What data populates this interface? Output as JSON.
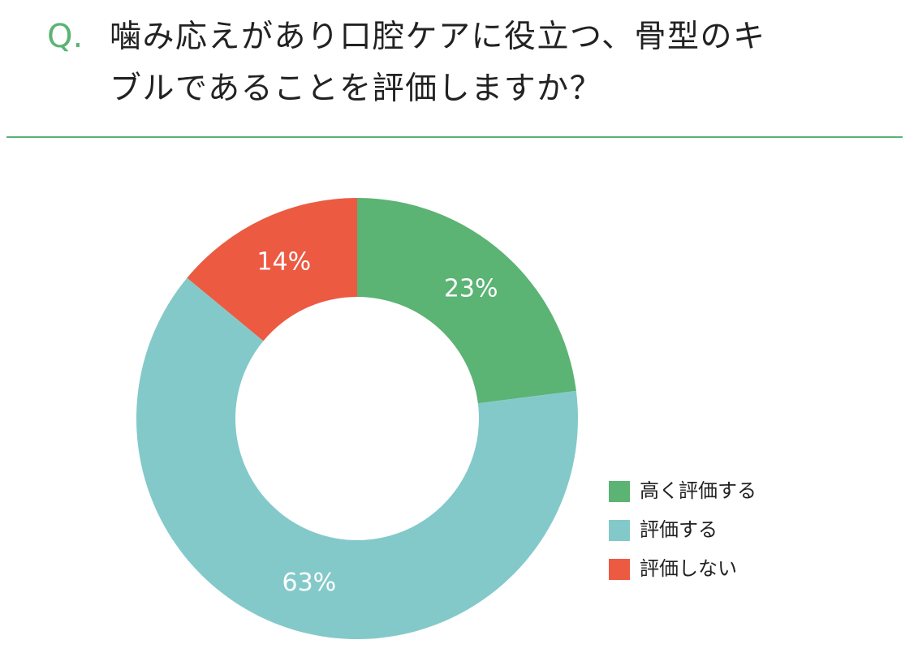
{
  "chart_data": {
    "type": "donut",
    "question_label": "Q.",
    "title_lines": [
      "噛み応えがあり口腔ケアに役立つ、骨型のキ",
      "ブルであることを評価しますか？"
    ],
    "categories": [
      "高く評価する",
      "評価する",
      "評価しない"
    ],
    "values": [
      23,
      63,
      14
    ],
    "value_labels": [
      "23%",
      "63%",
      "14%"
    ],
    "colors": [
      "#5bb374",
      "#84c9c9",
      "#ec5a42"
    ],
    "legend": "bottom-right"
  }
}
